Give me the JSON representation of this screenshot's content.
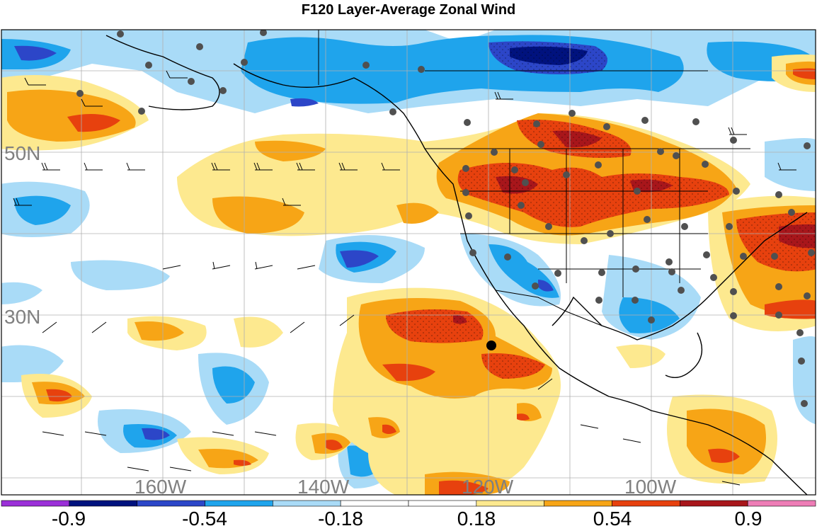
{
  "title": "F120 Layer-Average Zonal Wind",
  "map": {
    "lat_labels": [
      "50N",
      "30N"
    ],
    "lon_labels": [
      "160W",
      "140W",
      "120W",
      "100W"
    ]
  },
  "colorbar": {
    "colors": [
      "#9b30d8",
      "#00127e",
      "#2c46c8",
      "#1fa4ec",
      "#a9dbf7",
      "#ffffff",
      "#ffffff",
      "#fde98f",
      "#f7a516",
      "#e7410e",
      "#a8161b",
      "#ee7db6"
    ],
    "tick_labels": [
      "-0.9",
      "-0.54",
      "-0.18",
      "0.18",
      "0.54",
      "0.9"
    ],
    "tick_values": [
      -0.9,
      -0.54,
      -0.18,
      0.18,
      0.54,
      0.9
    ]
  },
  "legend_colors": {
    "strong_neg": "#00127e",
    "mid_neg": "#2c46c8",
    "neg": "#1fa4ec",
    "weak_neg": "#a9dbf7",
    "weak_pos": "#fde98f",
    "pos": "#f7a516",
    "mid_pos": "#e7410e",
    "strong_pos": "#a8161b"
  }
}
